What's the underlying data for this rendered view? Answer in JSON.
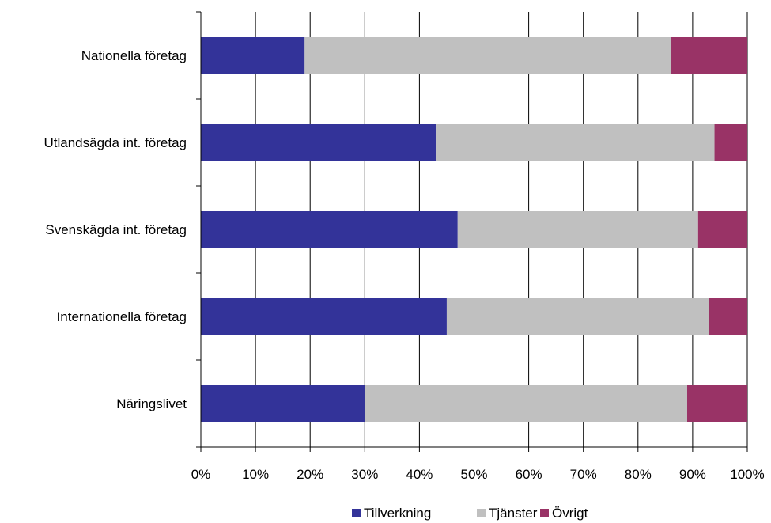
{
  "chart_data": {
    "type": "bar",
    "orientation": "horizontal",
    "stacked": "percent",
    "categories": [
      "Nationella företag",
      "Utlandsägda int. företag",
      "Svenskägda int. företag",
      "Internationella företag",
      "Näringslivet"
    ],
    "series": [
      {
        "name": "Tillverkning",
        "color": "#333399",
        "values": [
          19,
          43,
          47,
          45,
          30
        ]
      },
      {
        "name": "Tjänster",
        "color": "#c0c0c0",
        "values": [
          67,
          51,
          44,
          48,
          59
        ]
      },
      {
        "name": "Övrigt",
        "color": "#993366",
        "values": [
          14,
          6,
          9,
          7,
          11
        ]
      }
    ],
    "xlim": [
      0,
      100
    ],
    "xticks": [
      "0%",
      "10%",
      "20%",
      "30%",
      "40%",
      "50%",
      "60%",
      "70%",
      "80%",
      "90%",
      "100%"
    ],
    "grid": true,
    "legend": "bottom"
  }
}
